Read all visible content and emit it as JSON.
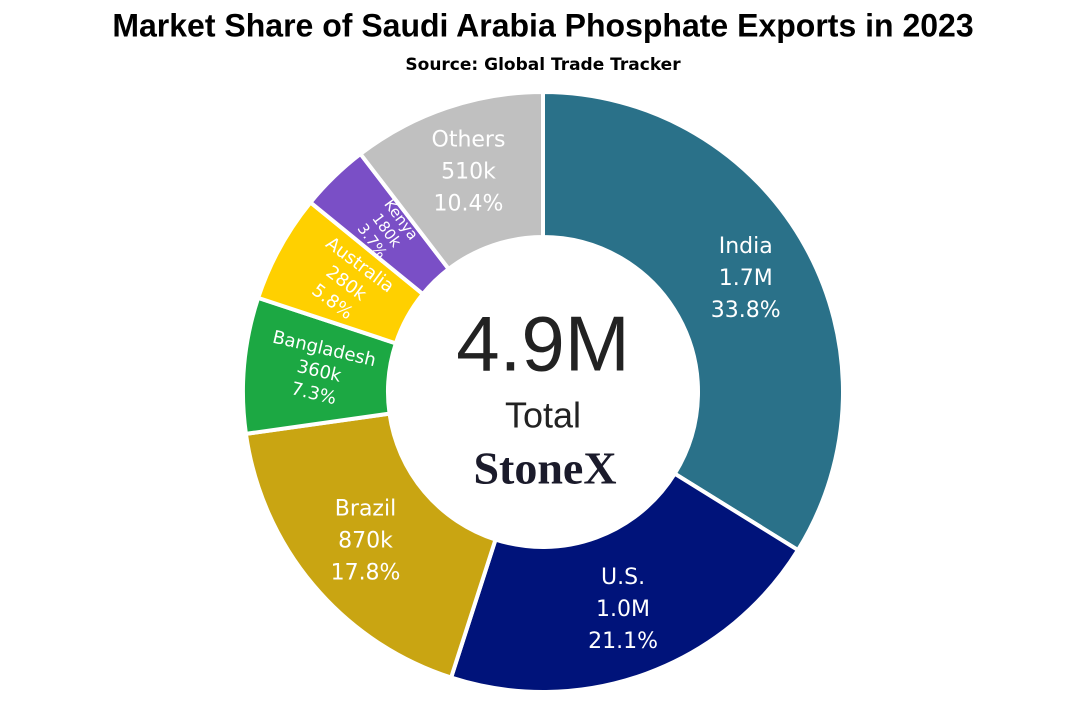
{
  "chart_data": {
    "type": "donut",
    "title": "Market Share of Saudi Arabia Phosphate Exports in 2023",
    "subtitle": "Source: Global Trade Tracker",
    "categories": [
      "India",
      "U.S.",
      "Brazil",
      "Bangladesh",
      "Australia",
      "Kenya",
      "Others"
    ],
    "values": [
      33.8,
      21.1,
      17.8,
      7.3,
      5.8,
      3.7,
      10.4
    ],
    "value_labels": [
      "33.8%",
      "21.1%",
      "17.8%",
      "7.3%",
      "5.8%",
      "3.7%",
      "10.4%"
    ],
    "amounts": [
      "1.7M",
      "1.0M",
      "870k",
      "360k",
      "280k",
      "180k",
      "510k"
    ],
    "colors": [
      "#2a7189",
      "#00137a",
      "#c9a512",
      "#1ca843",
      "#ffd000",
      "#7a4fc6",
      "#c0c0c0"
    ],
    "center_value": "4.9M",
    "center_caption": "Total",
    "logo": "StoneX"
  }
}
